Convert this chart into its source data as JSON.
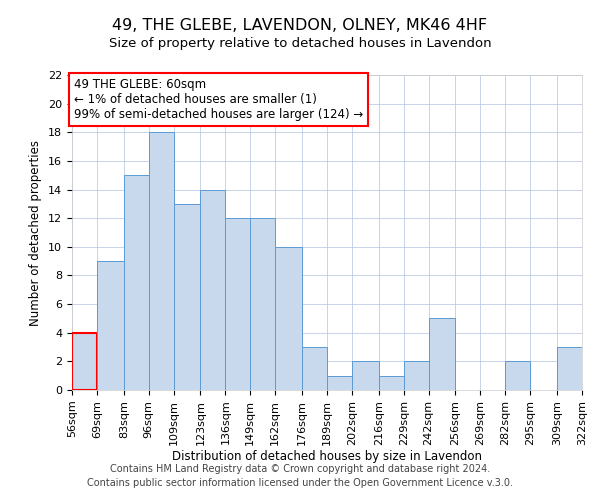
{
  "title": "49, THE GLEBE, LAVENDON, OLNEY, MK46 4HF",
  "subtitle": "Size of property relative to detached houses in Lavendon",
  "xlabel": "Distribution of detached houses by size in Lavendon",
  "ylabel": "Number of detached properties",
  "footer_line1": "Contains HM Land Registry data © Crown copyright and database right 2024.",
  "footer_line2": "Contains public sector information licensed under the Open Government Licence v.3.0.",
  "annotation_title": "49 THE GLEBE: 60sqm",
  "annotation_line1": "← 1% of detached houses are smaller (1)",
  "annotation_line2": "99% of semi-detached houses are larger (124) →",
  "bin_edges": [
    56,
    69,
    83,
    96,
    109,
    123,
    136,
    149,
    162,
    176,
    189,
    202,
    216,
    229,
    242,
    256,
    269,
    282,
    295,
    309,
    322
  ],
  "bin_counts": [
    4,
    9,
    15,
    18,
    13,
    14,
    12,
    12,
    10,
    3,
    1,
    2,
    1,
    2,
    5,
    0,
    0,
    2,
    0,
    3
  ],
  "bar_color": "#c8d9ed",
  "bar_edge_color": "#5b9bd5",
  "highlight_edge_color": "#ff0000",
  "highlight_bin_index": 0,
  "annotation_box_edge_color": "#ff0000",
  "ylim": [
    0,
    22
  ],
  "yticks": [
    0,
    2,
    4,
    6,
    8,
    10,
    12,
    14,
    16,
    18,
    20,
    22
  ],
  "grid_color": "#b0c4de",
  "background_color": "#ffffff",
  "title_fontsize": 11.5,
  "subtitle_fontsize": 9.5,
  "axis_label_fontsize": 8.5,
  "tick_fontsize": 8,
  "footer_fontsize": 7,
  "annotation_fontsize": 8.5
}
